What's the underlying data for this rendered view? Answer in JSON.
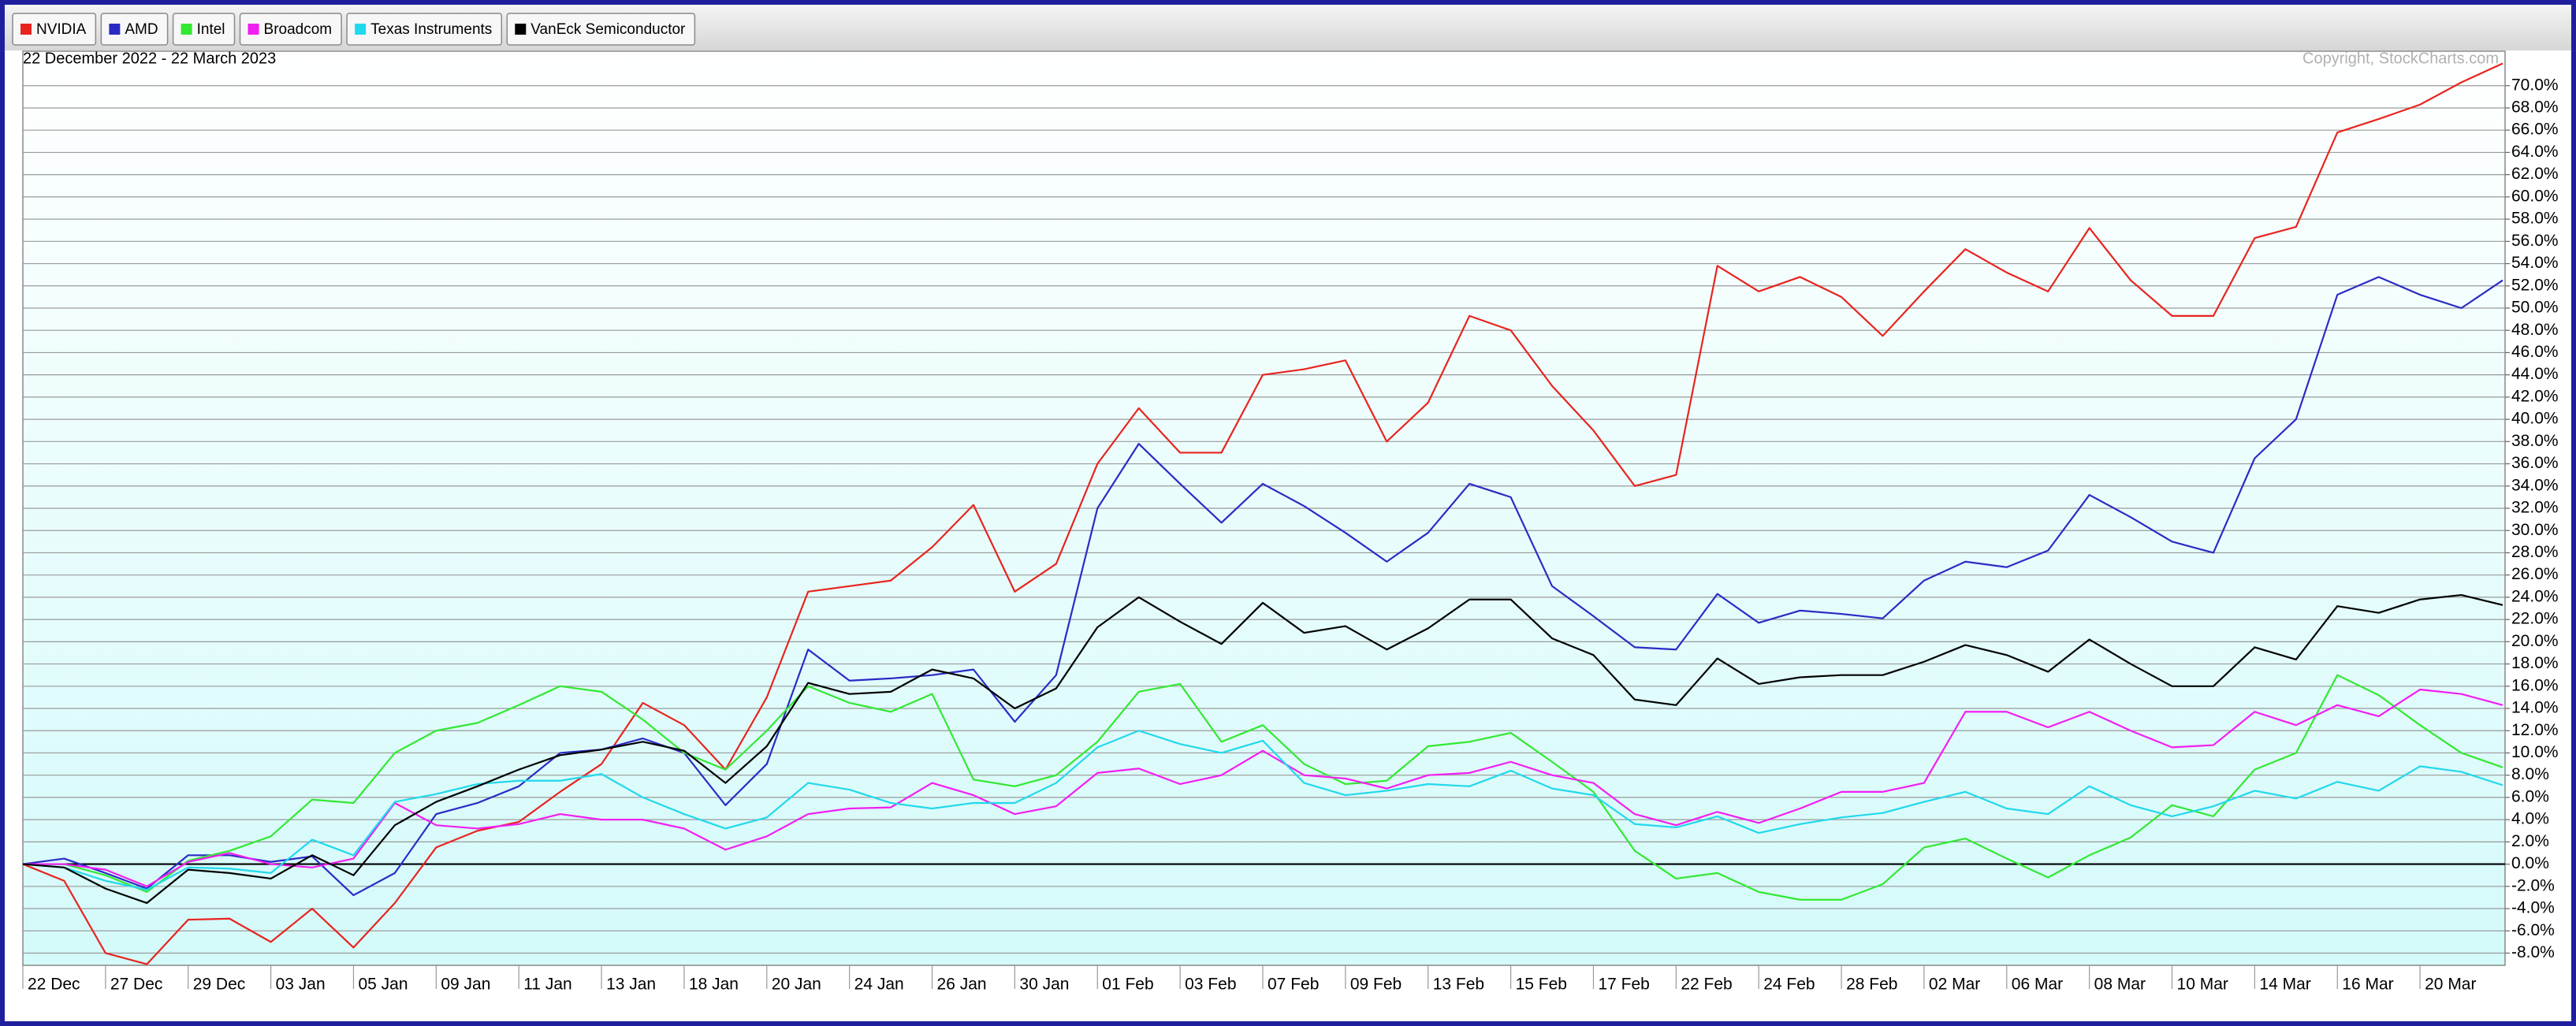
{
  "chart_data": {
    "type": "line",
    "subtitle": "22 December 2022 - 22 March 2023",
    "annotations": [
      "Copyright, StockCharts.com"
    ],
    "categories": [
      "22 Dec",
      null,
      "27 Dec",
      null,
      "29 Dec",
      null,
      "03 Jan",
      null,
      "05 Jan",
      null,
      "09 Jan",
      null,
      "11 Jan",
      null,
      "13 Jan",
      null,
      "18 Jan",
      null,
      "20 Jan",
      null,
      "24 Jan",
      null,
      "26 Jan",
      null,
      "30 Jan",
      null,
      "01 Feb",
      null,
      "03 Feb",
      null,
      "07 Feb",
      null,
      "09 Feb",
      null,
      "13 Feb",
      null,
      "15 Feb",
      null,
      "17 Feb",
      null,
      "22 Feb",
      null,
      "24 Feb",
      null,
      "28 Feb",
      null,
      "02 Mar",
      null,
      "06 Mar",
      null,
      "08 Mar",
      null,
      "10 Mar",
      null,
      "14 Mar",
      null,
      "16 Mar",
      null,
      "20 Mar",
      null,
      null
    ],
    "series": [
      {
        "name": "NVIDIA",
        "color": "#e8241e",
        "values": [
          0,
          -1.5,
          -8,
          -9,
          -5,
          -4.9,
          -7,
          -4,
          -7.5,
          -3.5,
          1.5,
          3,
          3.8,
          6.5,
          9,
          14.5,
          12.5,
          8.5,
          15,
          24.5,
          25,
          25.5,
          28.5,
          32.3,
          24.5,
          27,
          36,
          41,
          37,
          37,
          44,
          44.5,
          45.3,
          38,
          41.5,
          49.3,
          48,
          43,
          39,
          34,
          35,
          53.8,
          51.5,
          52.8,
          51,
          47.5,
          51.5,
          55.3,
          53.2,
          51.5,
          57.2,
          52.5,
          49.3,
          49.3,
          56.3,
          57.3,
          65.8,
          67,
          68.3,
          70.3,
          72
        ]
      },
      {
        "name": "AMD",
        "color": "#2b2bc4",
        "values": [
          0,
          0.5,
          -0.8,
          -2.2,
          0.8,
          0.8,
          0.2,
          0.7,
          -2.8,
          -0.8,
          4.5,
          5.5,
          7,
          10,
          10.3,
          11.3,
          10,
          5.3,
          9,
          19.3,
          16.5,
          16.7,
          17,
          17.5,
          12.8,
          17,
          32,
          37.8,
          34.2,
          30.7,
          34.2,
          32.2,
          29.8,
          27.2,
          29.8,
          34.2,
          33,
          25,
          22.3,
          19.5,
          19.3,
          24.3,
          21.7,
          22.8,
          22.5,
          22.1,
          25.5,
          27.2,
          26.7,
          28.2,
          33.2,
          31.2,
          29,
          28,
          36.5,
          40,
          51.2,
          52.8,
          51.2,
          50,
          52.5
        ]
      },
      {
        "name": "Intel",
        "color": "#33e833",
        "values": [
          0,
          0,
          -1,
          -2.5,
          0.3,
          1.2,
          2.5,
          5.8,
          5.5,
          10,
          12,
          12.7,
          14.3,
          16,
          15.5,
          13,
          10,
          8.5,
          12,
          16,
          14.5,
          13.7,
          15.3,
          7.6,
          7,
          8,
          11,
          15.5,
          16.2,
          11,
          12.5,
          9,
          7.2,
          7.5,
          10.6,
          11,
          11.8,
          9.2,
          6.5,
          1.2,
          -1.3,
          -0.8,
          -2.5,
          -3.2,
          -3.2,
          -1.8,
          1.5,
          2.3,
          0.5,
          -1.2,
          0.8,
          2.4,
          5.3,
          4.3,
          8.5,
          10,
          17,
          15.2,
          12.5,
          10,
          8.7
        ]
      },
      {
        "name": "Broadcom",
        "color": "#f21ef2",
        "values": [
          0,
          0,
          -0.5,
          -2,
          0.2,
          1,
          0,
          -0.3,
          0.5,
          5.5,
          3.5,
          3.2,
          3.6,
          4.5,
          4,
          4,
          3.2,
          1.3,
          2.5,
          4.5,
          5,
          5.1,
          7.3,
          6.2,
          4.5,
          5.2,
          8.2,
          8.6,
          7.2,
          8,
          10.2,
          8,
          7.7,
          6.8,
          8,
          8.2,
          9.2,
          8,
          7.3,
          4.5,
          3.5,
          4.7,
          3.7,
          5,
          6.5,
          6.5,
          7.3,
          13.7,
          13.7,
          12.3,
          13.7,
          12,
          10.5,
          10.7,
          13.7,
          12.5,
          14.3,
          13.3,
          15.7,
          15.3,
          14.3
        ]
      },
      {
        "name": "Texas Instruments",
        "color": "#22d8ec",
        "values": [
          0,
          -0.3,
          -1.5,
          -2.3,
          -0.3,
          -0.4,
          -0.8,
          2.2,
          0.8,
          5.6,
          6.3,
          7.2,
          7.5,
          7.5,
          8.1,
          6,
          4.5,
          3.2,
          4.2,
          7.3,
          6.7,
          5.5,
          5,
          5.5,
          5.5,
          7.3,
          10.5,
          12,
          10.8,
          10,
          11.1,
          7.3,
          6.2,
          6.6,
          7.2,
          7,
          8.4,
          6.8,
          6.2,
          3.6,
          3.3,
          4.3,
          2.8,
          3.6,
          4.2,
          4.6,
          5.6,
          6.5,
          5,
          4.5,
          7,
          5.3,
          4.3,
          5.2,
          6.6,
          5.9,
          7.4,
          6.6,
          8.8,
          8.3,
          7.1
        ]
      },
      {
        "name": "VanEck Semiconductor",
        "color": "#000000",
        "values": [
          0,
          -0.3,
          -2.2,
          -3.5,
          -0.5,
          -0.8,
          -1.3,
          0.8,
          -1,
          3.5,
          5.6,
          7,
          8.5,
          9.8,
          10.3,
          11,
          10.2,
          7.3,
          10.6,
          16.3,
          15.3,
          15.5,
          17.5,
          16.7,
          14,
          15.8,
          21.3,
          24,
          21.8,
          19.8,
          23.5,
          20.8,
          21.4,
          19.3,
          21.2,
          23.8,
          23.8,
          20.3,
          18.8,
          14.8,
          14.3,
          18.5,
          16.2,
          16.8,
          17,
          17,
          18.2,
          19.7,
          18.8,
          17.3,
          20.2,
          18,
          16,
          16,
          19.5,
          18.4,
          23.2,
          22.6,
          23.8,
          24.2,
          23.3
        ]
      }
    ],
    "ylim": [
      -9.1,
      73.1
    ],
    "yticks": [
      {
        "value": -8,
        "label": "-8.0%"
      },
      {
        "value": -6,
        "label": "-6.0%"
      },
      {
        "value": -4,
        "label": "-4.0%"
      },
      {
        "value": -2,
        "label": "-2.0%"
      },
      {
        "value": 0,
        "label": "0.0%"
      },
      {
        "value": 2,
        "label": "2.0%"
      },
      {
        "value": 4,
        "label": "4.0%"
      },
      {
        "value": 6,
        "label": "6.0%"
      },
      {
        "value": 8,
        "label": "8.0%"
      },
      {
        "value": 10,
        "label": "10.0%"
      },
      {
        "value": 12,
        "label": "12.0%"
      },
      {
        "value": 14,
        "label": "14.0%"
      },
      {
        "value": 16,
        "label": "16.0%"
      },
      {
        "value": 18,
        "label": "18.0%"
      },
      {
        "value": 20,
        "label": "20.0%"
      },
      {
        "value": 22,
        "label": "22.0%"
      },
      {
        "value": 24,
        "label": "24.0%"
      },
      {
        "value": 26,
        "label": "26.0%"
      },
      {
        "value": 28,
        "label": "28.0%"
      },
      {
        "value": 30,
        "label": "30.0%"
      },
      {
        "value": 32,
        "label": "32.0%"
      },
      {
        "value": 34,
        "label": "34.0%"
      },
      {
        "value": 36,
        "label": "36.0%"
      },
      {
        "value": 38,
        "label": "38.0%"
      },
      {
        "value": 40,
        "label": "40.0%"
      },
      {
        "value": 42,
        "label": "42.0%"
      },
      {
        "value": 44,
        "label": "44.0%"
      },
      {
        "value": 46,
        "label": "46.0%"
      },
      {
        "value": 48,
        "label": "48.0%"
      },
      {
        "value": 50,
        "label": "50.0%"
      },
      {
        "value": 52,
        "label": "52.0%"
      },
      {
        "value": 54,
        "label": "54.0%"
      },
      {
        "value": 56,
        "label": "56.0%"
      },
      {
        "value": 58,
        "label": "58.0%"
      },
      {
        "value": 60,
        "label": "60.0%"
      },
      {
        "value": 62,
        "label": "62.0%"
      },
      {
        "value": 64,
        "label": "64.0%"
      },
      {
        "value": 66,
        "label": "66.0%"
      },
      {
        "value": 68,
        "label": "68.0%"
      },
      {
        "value": 70,
        "label": "70.0%"
      }
    ],
    "grid": true,
    "legend": "top-left"
  }
}
